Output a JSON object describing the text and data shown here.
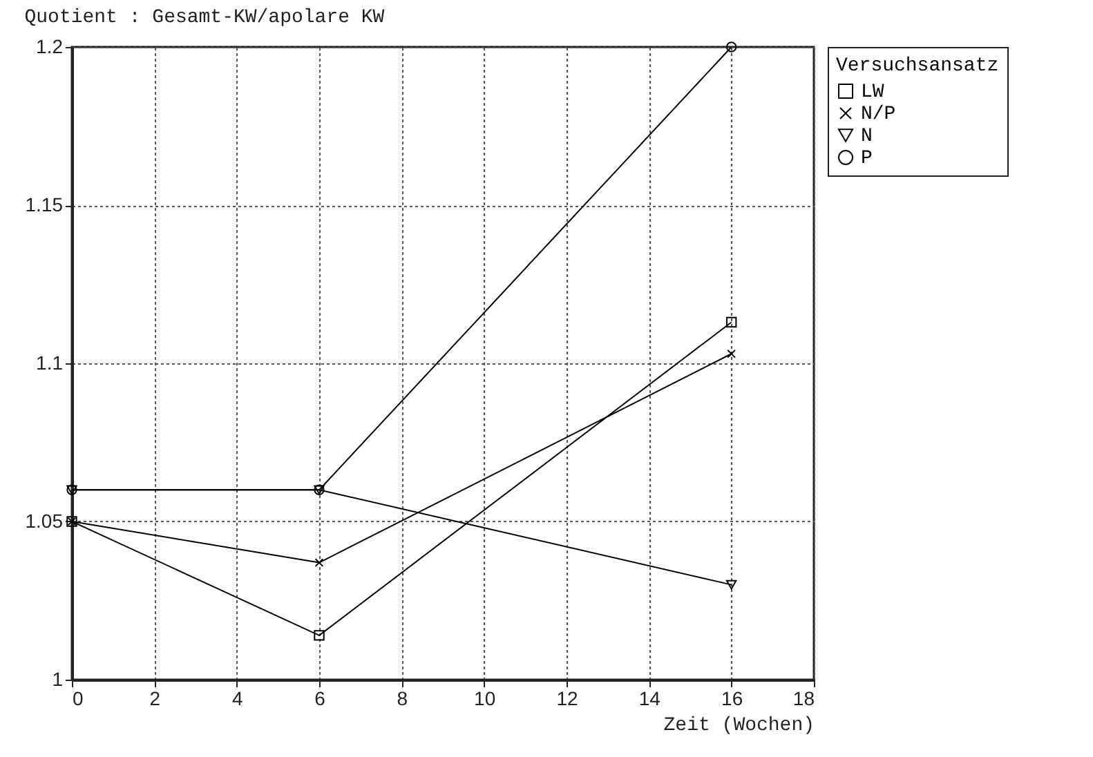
{
  "chart_data": {
    "type": "line",
    "title": "Quotient : Gesamt-KW/apolare KW",
    "xlabel": "Zeit (Wochen)",
    "legend_title": "Versuchsansatz",
    "x": [
      0,
      6,
      16
    ],
    "series": [
      {
        "name": "LW",
        "color": "#000000",
        "marker": "square",
        "values": [
          1.05,
          1.014,
          1.113
        ]
      },
      {
        "name": "N/P",
        "color": "#000000",
        "marker": "cross",
        "values": [
          1.05,
          1.037,
          1.103
        ]
      },
      {
        "name": "N",
        "color": "#000000",
        "marker": "triangle",
        "values": [
          1.06,
          1.06,
          1.03
        ]
      },
      {
        "name": "P",
        "color": "#000000",
        "marker": "circle",
        "values": [
          1.06,
          1.06,
          1.2
        ]
      }
    ],
    "xlim": [
      0,
      18
    ],
    "xticks": [
      0,
      2,
      4,
      6,
      8,
      10,
      12,
      14,
      16,
      18
    ],
    "ylim": [
      1,
      1.2
    ],
    "yticks": [
      1,
      1.05,
      1.1,
      1.15,
      1.2
    ],
    "grid": true,
    "legend": "top right",
    "line_style": "solid"
  }
}
